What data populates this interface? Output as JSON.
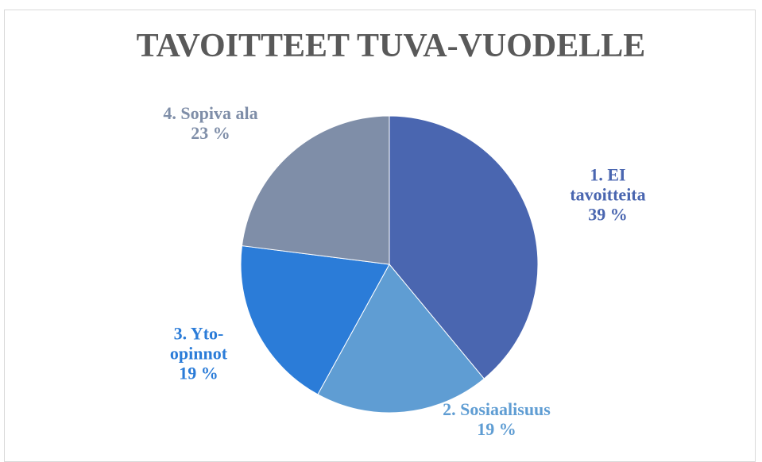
{
  "chart_data": {
    "type": "pie",
    "title": "TAVOITTEET TUVA-VUODELLE",
    "categories": [
      "1. EI tavoitteita",
      "2. Sosiaalisuus",
      "3. Yto-opinnot",
      "4. Sopiva ala"
    ],
    "values": [
      39,
      19,
      19,
      23
    ],
    "value_labels": [
      "39 %",
      "19 %",
      "19 %",
      "23 %"
    ],
    "colors": [
      "#4a66b0",
      "#5f9dd3",
      "#2b7cd8",
      "#7f8ea8"
    ]
  }
}
